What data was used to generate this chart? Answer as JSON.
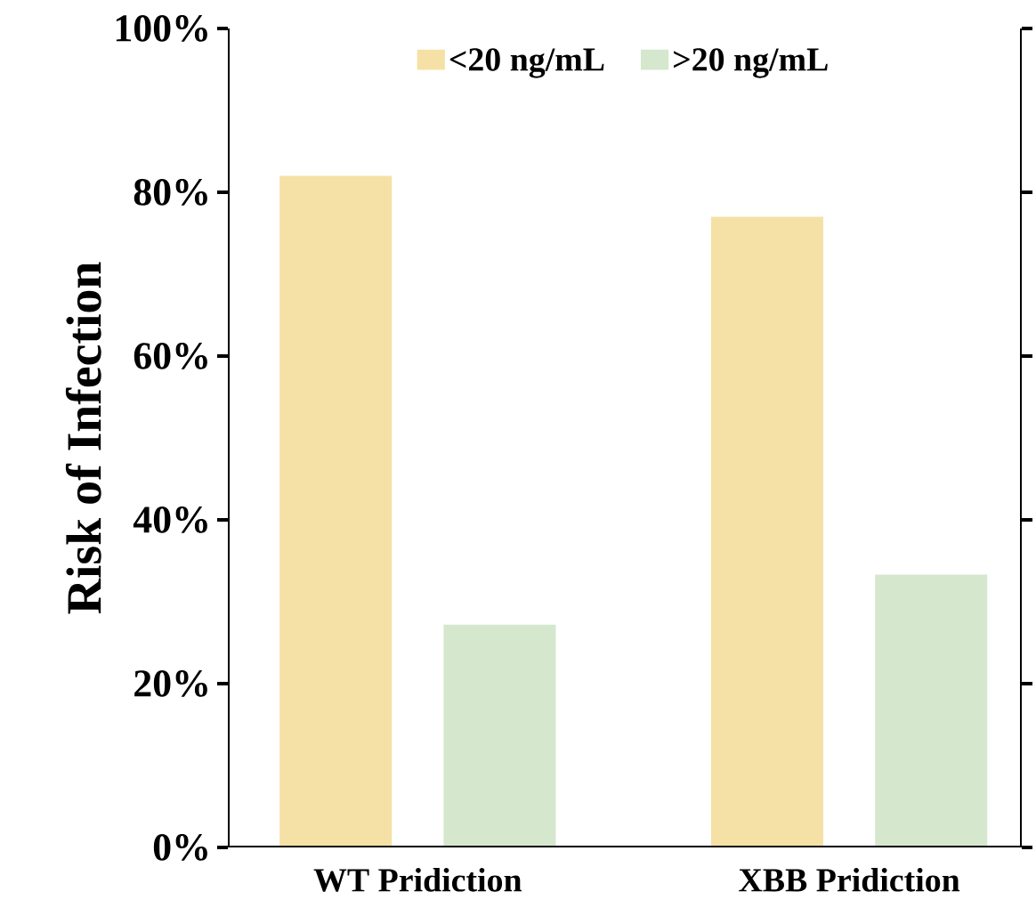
{
  "chart_data": {
    "type": "bar",
    "ylabel": "Risk of Infection",
    "categories": [
      "WT Pridiction",
      "XBB Pridiction"
    ],
    "series": [
      {
        "name": "<20 ng/mL",
        "color": "#f5e1a5",
        "values": [
          82,
          77
        ]
      },
      {
        "name": ">20 ng/mL",
        "color": "#d5e7cd",
        "values": [
          27.2,
          33.3
        ]
      }
    ],
    "ylim": [
      0,
      100
    ],
    "yticks": [
      {
        "value": 0,
        "label": "0%"
      },
      {
        "value": 20,
        "label": "20%"
      },
      {
        "value": 40,
        "label": "40%"
      },
      {
        "value": 60,
        "label": "60%"
      },
      {
        "value": 80,
        "label": "80%"
      },
      {
        "value": 100,
        "label": "100%"
      }
    ],
    "legend": "top"
  }
}
